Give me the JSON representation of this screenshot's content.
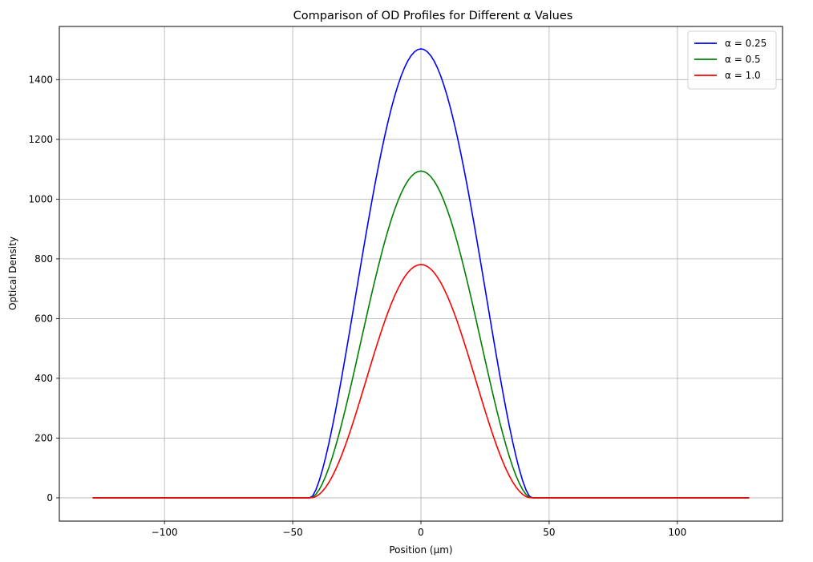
{
  "chart_data": {
    "type": "line",
    "title": "Comparison of OD Profiles for Different α Values",
    "xlabel": "Position (µm)",
    "ylabel": "Optical Density",
    "xlim": [
      -141,
      141
    ],
    "ylim": [
      -78,
      1578
    ],
    "xticks": [
      -100,
      -50,
      0,
      50,
      100
    ],
    "xtick_labels": [
      "−100",
      "−50",
      "0",
      "50",
      "100"
    ],
    "yticks": [
      0,
      200,
      400,
      600,
      800,
      1000,
      1200,
      1400
    ],
    "ytick_labels": [
      "0",
      "200",
      "400",
      "600",
      "800",
      "1000",
      "1200",
      "1400"
    ],
    "grid": true,
    "legend_position": "top-right",
    "support_range": [
      -128,
      128
    ],
    "nonzero_range": [
      -43,
      43
    ],
    "series": [
      {
        "name": "α = 0.25",
        "color": "#0000ff",
        "peak": 1503,
        "shape_exponent": 1.55
      },
      {
        "name": "α = 0.5",
        "color": "#008000",
        "peak": 1094,
        "shape_exponent": 1.75
      },
      {
        "name": "α = 1.0",
        "color": "#ff0000",
        "peak": 781,
        "shape_exponent": 2.0
      }
    ]
  }
}
